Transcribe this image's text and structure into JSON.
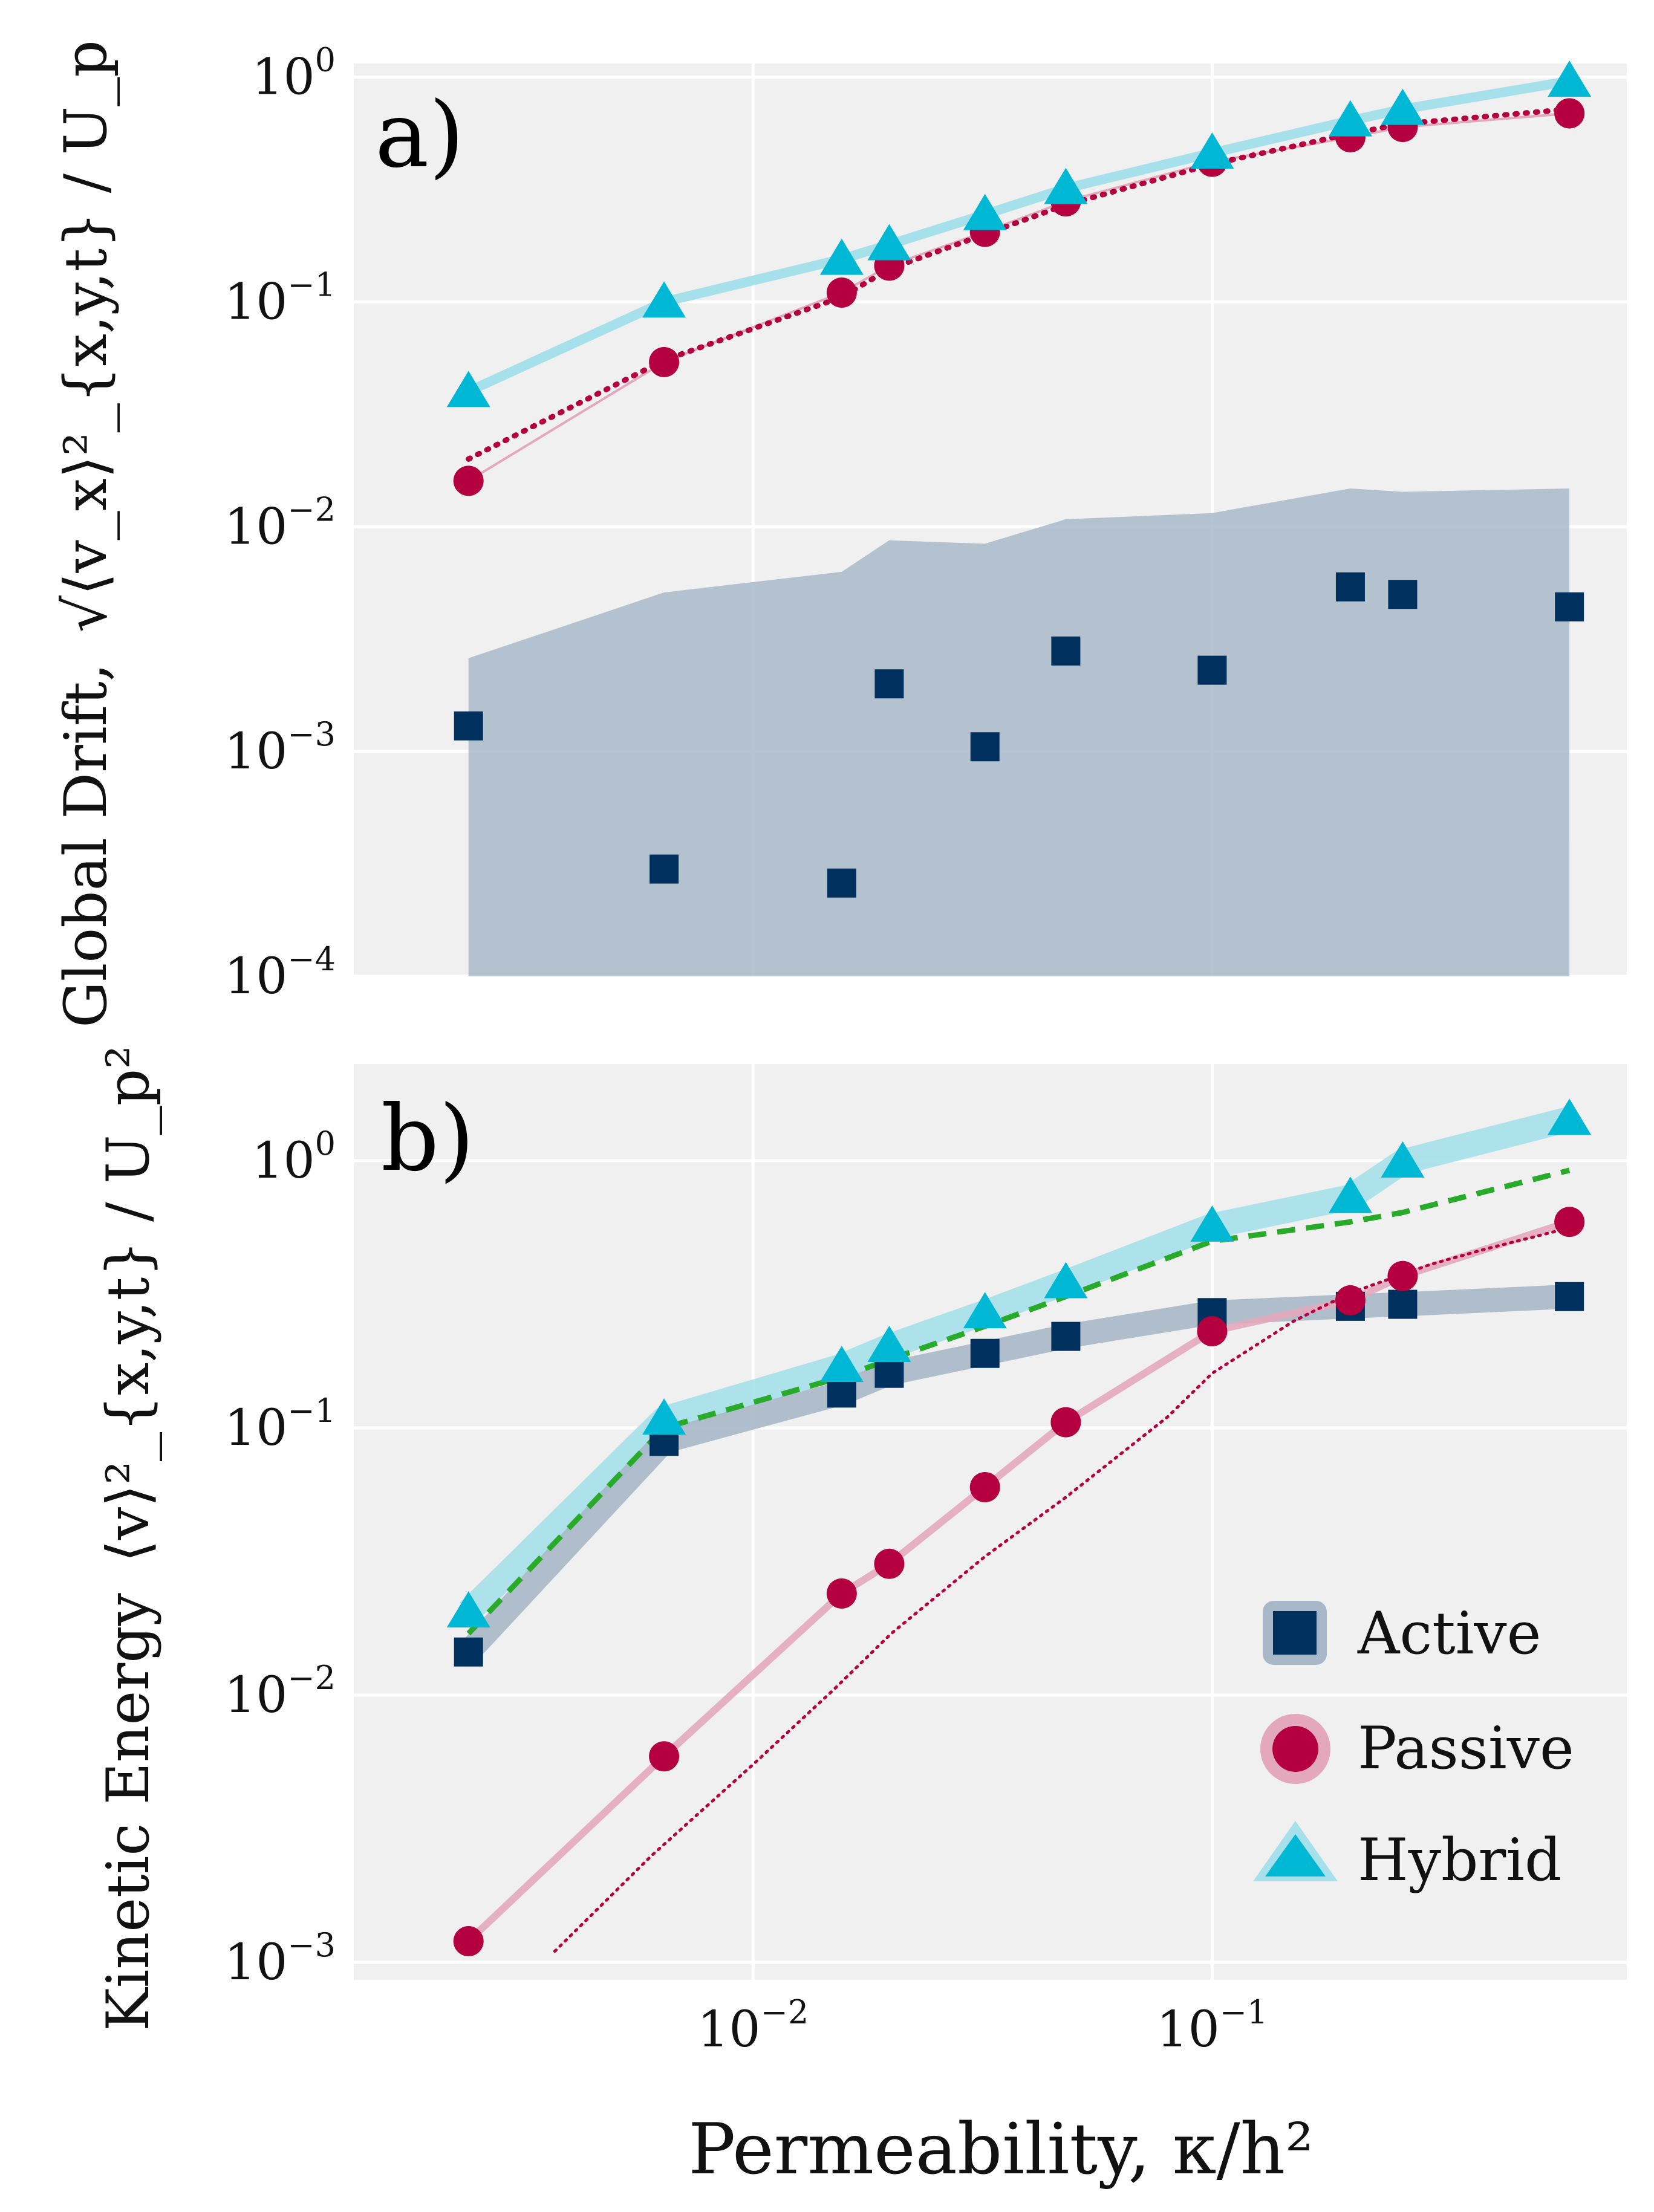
{
  "colors": {
    "panel_bg": "#f0f0f0",
    "grid": "#ffffff",
    "active": "#00305e",
    "active_band": "#a9b8c8",
    "passive": "#b5003f",
    "passive_band": "#e3a8bb",
    "hybrid": "#00b8d4",
    "hybrid_band": "#a6e0ea",
    "fit": "#2aaa2a"
  },
  "chart_data": [
    {
      "panel": "a)",
      "type": "scatter",
      "y_axis_title": "Global Drift,",
      "y_quantity": "√⟨v_x⟩²_{x,y,t} / U_p",
      "xscale": "log",
      "yscale": "log",
      "xlim": [
        0.00135,
        0.8
      ],
      "ylim": [
        0.0001,
        1.15
      ],
      "y_ticks": [
        {
          "value": 1,
          "base": "10",
          "exp": "0"
        },
        {
          "value": 0.1,
          "base": "10",
          "exp": "−1"
        },
        {
          "value": 0.01,
          "base": "10",
          "exp": "−2"
        },
        {
          "value": 0.001,
          "base": "10",
          "exp": "−3"
        },
        {
          "value": 0.0001,
          "base": "10",
          "exp": "−4"
        }
      ],
      "x": [
        0.0024,
        0.0064,
        0.0156,
        0.0198,
        0.032,
        0.048,
        0.1,
        0.2,
        0.26,
        0.6
      ],
      "series": [
        {
          "name": "Active",
          "marker": "square",
          "values": [
            0.0013,
            0.0003,
            0.00026,
            0.002,
            0.00105,
            0.0028,
            0.0023,
            0.0054,
            0.005,
            0.0044
          ],
          "band_upper": [
            0.0026,
            0.0051,
            0.0063,
            0.0087,
            0.0084,
            0.0108,
            0.0115,
            0.0148,
            0.0143,
            0.0148
          ]
        },
        {
          "name": "Passive",
          "marker": "circle",
          "values": [
            0.016,
            0.054,
            0.11,
            0.145,
            0.205,
            0.28,
            0.42,
            0.54,
            0.6,
            0.69
          ],
          "fit_x": [
            0.0024,
            0.0064,
            0.0156,
            0.0198,
            0.032,
            0.048,
            0.1,
            0.2,
            0.26,
            0.6
          ],
          "fit_values": [
            0.02,
            0.055,
            0.105,
            0.14,
            0.2,
            0.27,
            0.41,
            0.56,
            0.62,
            0.72
          ]
        },
        {
          "name": "Hybrid",
          "marker": "triangle",
          "values": [
            0.04,
            0.1,
            0.155,
            0.18,
            0.245,
            0.32,
            0.46,
            0.64,
            0.72,
            0.96
          ]
        }
      ]
    },
    {
      "panel": "b)",
      "type": "line",
      "y_axis_title": "Kinetic Energy",
      "y_quantity": "⟨v⟩²_{x,y,t} / U_p²",
      "xscale": "log",
      "yscale": "log",
      "xlim": [
        0.00135,
        0.8
      ],
      "ylim": [
        0.00086,
        2.3
      ],
      "y_ticks": [
        {
          "value": 1,
          "base": "10",
          "exp": "0"
        },
        {
          "value": 0.1,
          "base": "10",
          "exp": "−1"
        },
        {
          "value": 0.01,
          "base": "10",
          "exp": "−2"
        },
        {
          "value": 0.001,
          "base": "10",
          "exp": "−3"
        }
      ],
      "x_ticks": [
        {
          "value": 0.01,
          "base": "10",
          "exp": "−2"
        },
        {
          "value": 0.1,
          "base": "10",
          "exp": "−1"
        }
      ],
      "xlabel": "Permeability, κ/h²",
      "x": [
        0.0024,
        0.0064,
        0.0156,
        0.0198,
        0.032,
        0.048,
        0.1,
        0.2,
        0.26,
        0.6
      ],
      "series": [
        {
          "name": "Active",
          "marker": "square",
          "values": [
            0.0145,
            0.089,
            0.135,
            0.16,
            0.19,
            0.22,
            0.27,
            0.285,
            0.29,
            0.31
          ]
        },
        {
          "name": "Passive",
          "marker": "circle",
          "values": [
            0.0012,
            0.0059,
            0.024,
            0.031,
            0.06,
            0.105,
            0.23,
            0.3,
            0.37,
            0.59
          ],
          "fit_x": [
            0.0037,
            0.006,
            0.01,
            0.015,
            0.02,
            0.032,
            0.048,
            0.08,
            0.1,
            0.15,
            0.2,
            0.3,
            0.4,
            0.6
          ],
          "fit_values": [
            0.0011,
            0.0025,
            0.0055,
            0.0105,
            0.017,
            0.033,
            0.055,
            0.11,
            0.16,
            0.25,
            0.32,
            0.41,
            0.47,
            0.56
          ]
        },
        {
          "name": "Hybrid",
          "marker": "triangle",
          "values": [
            0.0205,
            0.108,
            0.17,
            0.202,
            0.27,
            0.35,
            0.57,
            0.73,
            0.99,
            1.43
          ]
        },
        {
          "name": "Hybrid fit",
          "marker": "none",
          "style": "dashed",
          "values": [
            0.017,
            0.1,
            0.155,
            0.18,
            0.24,
            0.31,
            0.5,
            0.59,
            0.64,
            0.92
          ]
        }
      ],
      "legend": {
        "position": "bottom-right",
        "entries": [
          "Active",
          "Passive",
          "Hybrid"
        ]
      }
    }
  ]
}
